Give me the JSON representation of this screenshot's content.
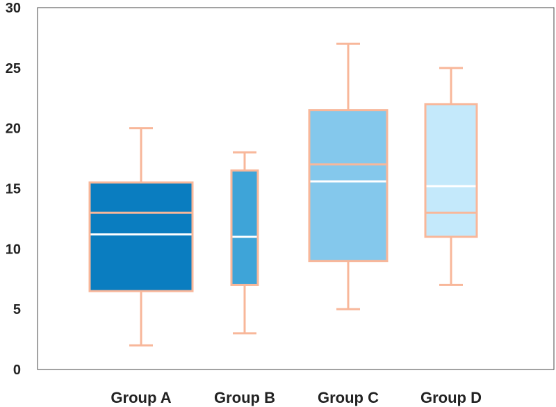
{
  "chart_data": {
    "type": "boxplot",
    "categories": [
      "Group A",
      "Group B",
      "Group C",
      "Group D"
    ],
    "series": [
      {
        "min": 2,
        "q1": 6.5,
        "median": 13,
        "mean": 11.2,
        "q3": 15.5,
        "max": 20
      },
      {
        "min": 3,
        "q1": 7,
        "median": 11,
        "mean": 11,
        "q3": 16.5,
        "max": 18
      },
      {
        "min": 5,
        "q1": 9,
        "median": 17,
        "mean": 15.6,
        "q3": 21.5,
        "max": 27
      },
      {
        "min": 7,
        "q1": 11,
        "median": 13,
        "mean": 15.2,
        "q3": 22,
        "max": 25
      }
    ],
    "box_colors": [
      "#0a7dc0",
      "#3ea4d8",
      "#84c8ec",
      "#c4e9fb"
    ],
    "whisker_color": "#f8b79a",
    "mean_line_color": "#ffffff",
    "yticks": [
      0,
      5,
      10,
      15,
      20,
      25,
      30
    ],
    "ylim": [
      0,
      30
    ],
    "grid": false,
    "title": "",
    "xlabel": "",
    "ylabel": ""
  }
}
